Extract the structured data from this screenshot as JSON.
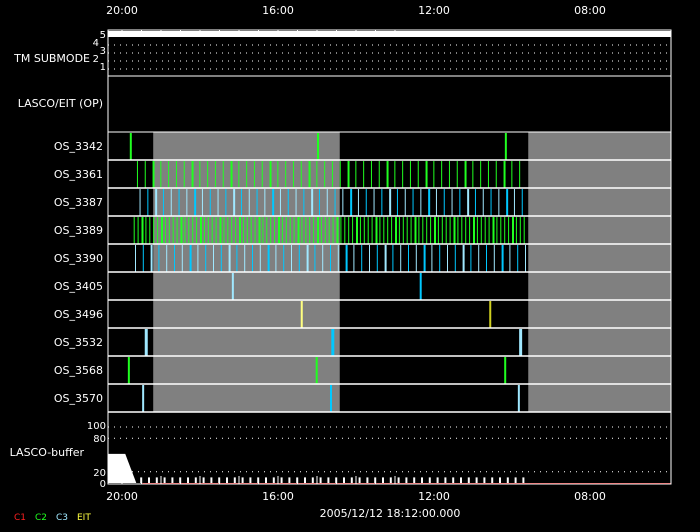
{
  "chart_data": {
    "type": "timeline",
    "x_axis": {
      "ticks": [
        "20:00",
        "16:00",
        "12:00",
        "08:00"
      ],
      "direction": "time decreasing left to right",
      "range": [
        "20:21",
        "05:55"
      ]
    },
    "footer_timestamp": "2005/12/12 18:12:00.000",
    "legend": [
      {
        "label": "C1",
        "color": "#ff2020"
      },
      {
        "label": "C2",
        "color": "#20ff20"
      },
      {
        "label": "C3",
        "color": "#a0e8ff"
      },
      {
        "label": "EIT",
        "color": "#ffff40"
      }
    ],
    "tm_submode": {
      "label": "TM SUBMODE",
      "ticks": [
        "5",
        "4",
        "3",
        "2",
        "1"
      ],
      "value": 5
    },
    "op_panel": {
      "label": "LASCO/EIT (OP)"
    },
    "gray_intervals": [
      [
        "19:12",
        "14:25"
      ],
      [
        "09:35",
        "05:55"
      ]
    ],
    "rows": [
      {
        "label": "OS_3342",
        "events": [
          {
            "t": "19:48",
            "c": "#20ff20"
          },
          {
            "t": "15:00",
            "c": "#20ff20"
          },
          {
            "t": "10:11",
            "c": "#20ff20"
          }
        ]
      },
      {
        "label": "OS_3361",
        "pattern": {
          "start": "19:37",
          "end": "09:38",
          "interval_min": 12,
          "colors": [
            "#20ff20"
          ]
        }
      },
      {
        "label": "OS_3387",
        "pattern": {
          "start": "19:33",
          "end": "09:38",
          "interval_min": 12,
          "colors": [
            "#a0e8ff",
            "#00c8ff"
          ]
        }
      },
      {
        "label": "OS_3389",
        "pattern": {
          "start": "19:42",
          "end": "09:38",
          "interval_min": 6,
          "colors": [
            "#20ff20"
          ]
        }
      },
      {
        "label": "OS_3390",
        "pattern": {
          "start": "19:40",
          "end": "09:38",
          "interval_min": 12,
          "colors": [
            "#a0e8ff",
            "#00c8ff"
          ]
        }
      },
      {
        "label": "OS_3405",
        "events": [
          {
            "t": "17:11",
            "c": "#a0e8ff"
          },
          {
            "t": "12:22",
            "c": "#00c8ff"
          }
        ]
      },
      {
        "label": "OS_3496",
        "events": [
          {
            "t": "15:25",
            "c": "#ffff80"
          },
          {
            "t": "10:35",
            "c": "#d0d020"
          }
        ]
      },
      {
        "label": "OS_3532",
        "events": [
          {
            "t": "19:25",
            "c": "#a0e8ff",
            "w": 3
          },
          {
            "t": "14:38",
            "c": "#00c8ff",
            "w": 3
          },
          {
            "t": "09:49",
            "c": "#a0e8ff",
            "w": 3
          }
        ]
      },
      {
        "label": "OS_3568",
        "events": [
          {
            "t": "19:51",
            "c": "#20ff20"
          },
          {
            "t": "15:02",
            "c": "#20ff20"
          },
          {
            "t": "10:12",
            "c": "#20ff20"
          }
        ]
      },
      {
        "label": "OS_3570",
        "events": [
          {
            "t": "19:29",
            "c": "#a0e8ff"
          },
          {
            "t": "14:40",
            "c": "#00c8ff"
          },
          {
            "t": "09:51",
            "c": "#a0e8ff"
          }
        ]
      }
    ],
    "buffer": {
      "label": "LASCO-buffer",
      "ticks": [
        "100",
        "80",
        "20",
        "0"
      ],
      "ylim": [
        0,
        100
      ],
      "initial_level": 52,
      "initial_until": "19:55",
      "drain_until": "19:38",
      "spike_level": 10,
      "spike_interval_min": 12,
      "spikes_until": "09:38"
    }
  }
}
